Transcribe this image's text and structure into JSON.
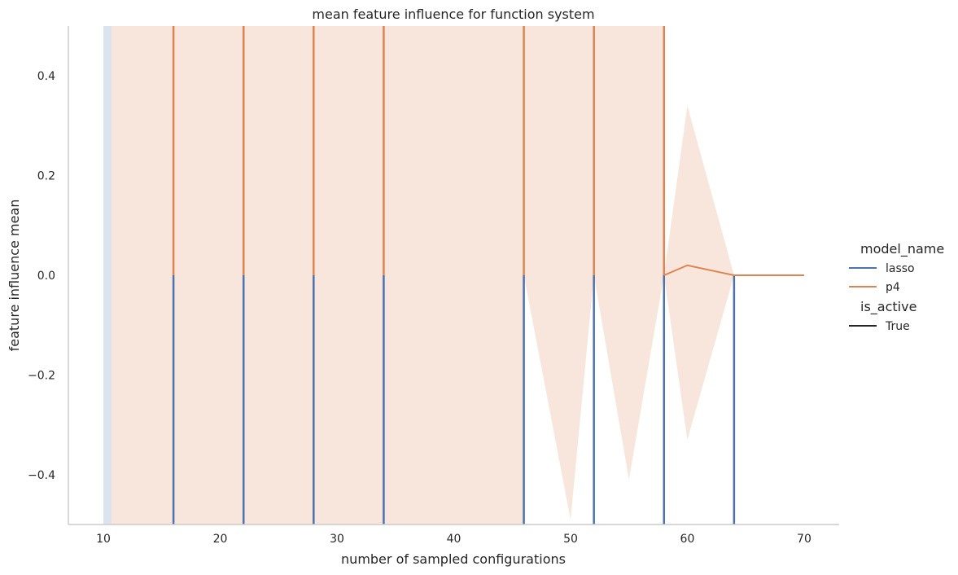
{
  "chart_data": {
    "type": "line",
    "title": "mean feature influence for function system",
    "xlabel": "number of sampled configurations",
    "ylabel": "feature influence mean",
    "xlim": [
      7,
      73
    ],
    "ylim": [
      -0.5,
      0.5
    ],
    "xticks": [
      10,
      20,
      30,
      40,
      50,
      60,
      70
    ],
    "yticks": [
      0.4,
      0.2,
      0.0,
      -0.2,
      -0.4
    ],
    "ytick_labels": [
      "0.4",
      "0.2",
      "0.0",
      "−0.2",
      "−0.4"
    ],
    "grid": false,
    "legend_position": "right",
    "legend": {
      "hue_title": "model_name",
      "style_title": "is_active",
      "style_entries": [
        "True"
      ]
    },
    "series": [
      {
        "name": "lasso",
        "color": "#4c72b0",
        "spikes_x": [
          16,
          22,
          28,
          34,
          46,
          52,
          58,
          64
        ],
        "spike_range": [
          -0.5,
          0.0
        ],
        "points": [
          [
            64,
            0.0
          ],
          [
            70,
            0.0
          ]
        ],
        "ci_band": [
          [
            10,
            -0.5,
            0.5
          ],
          [
            10.7,
            -0.5,
            0.5
          ]
        ]
      },
      {
        "name": "p4",
        "color": "#dd8452",
        "spikes_x": [
          16,
          22,
          28,
          34,
          46,
          52,
          58
        ],
        "spike_range": [
          0.0,
          0.5
        ],
        "points": [
          [
            58,
            0.0
          ],
          [
            60,
            0.02
          ],
          [
            64,
            0.0
          ],
          [
            70,
            0.0
          ]
        ],
        "ci_band": [
          [
            10.7,
            -0.5,
            0.5
          ],
          [
            34.4,
            -0.5,
            0.5
          ],
          [
            34.6,
            -0.5,
            0.5
          ],
          [
            46,
            -0.5,
            0.5
          ],
          [
            46,
            0.0,
            0.5
          ],
          [
            50,
            -0.49,
            0.5
          ],
          [
            52,
            0.0,
            0.5
          ],
          [
            55,
            -0.41,
            0.5
          ],
          [
            58,
            0.0,
            0.5
          ],
          [
            58,
            0.0,
            0.0
          ],
          [
            60,
            -0.33,
            0.34
          ],
          [
            64,
            0.0,
            0.0
          ]
        ]
      }
    ]
  }
}
